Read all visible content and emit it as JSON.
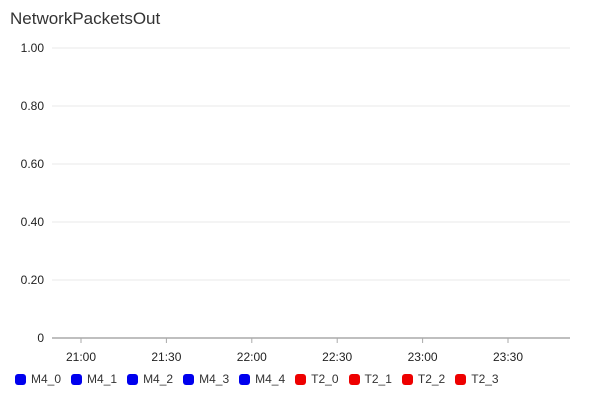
{
  "chart_data": {
    "type": "line",
    "title": "NetworkPacketsOut",
    "xlabel": "",
    "ylabel": "",
    "x_ticks": [
      "21:00",
      "21:30",
      "22:00",
      "22:30",
      "23:00",
      "23:30"
    ],
    "y_ticks": [
      "1.00",
      "0.80",
      "0.60",
      "0.40",
      "0.20",
      "0"
    ],
    "ylim": [
      0,
      1
    ],
    "grid": true,
    "legend_position": "bottom",
    "series": [
      {
        "name": "M4_0",
        "color": "#0000ee",
        "values": []
      },
      {
        "name": "M4_1",
        "color": "#0000ee",
        "values": []
      },
      {
        "name": "M4_2",
        "color": "#0000ee",
        "values": []
      },
      {
        "name": "M4_3",
        "color": "#0000ee",
        "values": []
      },
      {
        "name": "M4_4",
        "color": "#0000ee",
        "values": []
      },
      {
        "name": "T2_0",
        "color": "#ee0000",
        "values": []
      },
      {
        "name": "T2_1",
        "color": "#ee0000",
        "values": []
      },
      {
        "name": "T2_2",
        "color": "#ee0000",
        "values": []
      },
      {
        "name": "T2_3",
        "color": "#ee0000",
        "values": []
      }
    ]
  }
}
